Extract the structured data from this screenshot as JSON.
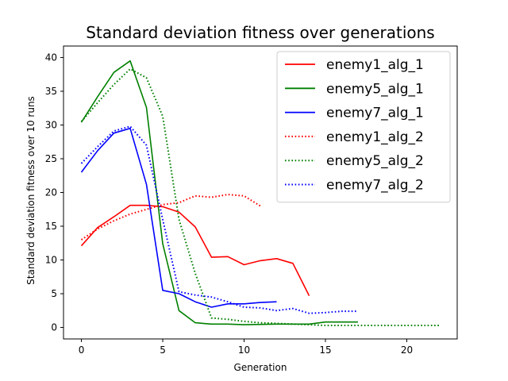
{
  "chart_data": {
    "type": "line",
    "title": "Standard deviation fitness over generations",
    "xlabel": "Generation",
    "ylabel": "Standard deviation fitness over 10 runs",
    "xlim": [
      -1.1,
      23.1
    ],
    "ylim": [
      -1.7,
      41.7
    ],
    "x_ticks": [
      0,
      5,
      10,
      15,
      20
    ],
    "y_ticks": [
      0,
      5,
      10,
      15,
      20,
      25,
      30,
      35,
      40
    ],
    "grid": false,
    "legend_position": "top-right",
    "series": [
      {
        "name": "enemy1_alg_1",
        "color": "#ff0000",
        "style": "solid",
        "x": [
          0,
          1,
          2,
          3,
          4,
          5,
          6,
          7,
          8,
          9,
          10,
          11,
          12,
          13,
          14
        ],
        "y": [
          12.1,
          14.8,
          16.4,
          18.1,
          18.1,
          17.9,
          17.1,
          14.9,
          10.4,
          10.5,
          9.3,
          9.9,
          10.2,
          9.5,
          4.7
        ]
      },
      {
        "name": "enemy5_alg_1",
        "color": "#008000",
        "style": "solid",
        "x": [
          0,
          1,
          2,
          3,
          4,
          5,
          6,
          7,
          8,
          9,
          10,
          11,
          12,
          13,
          14,
          15,
          16,
          17
        ],
        "y": [
          30.4,
          34.2,
          37.8,
          39.5,
          32.6,
          12.4,
          2.5,
          0.7,
          0.5,
          0.5,
          0.4,
          0.45,
          0.5,
          0.5,
          0.5,
          0.8,
          0.8,
          0.8
        ]
      },
      {
        "name": "enemy7_alg_1",
        "color": "#0000ff",
        "style": "solid",
        "x": [
          0,
          1,
          2,
          3,
          4,
          5,
          6,
          7,
          8,
          9,
          10,
          11,
          12
        ],
        "y": [
          23.0,
          26.2,
          28.8,
          29.5,
          21.2,
          5.5,
          5.0,
          3.8,
          3.0,
          3.5,
          3.5,
          3.7,
          3.8
        ]
      },
      {
        "name": "enemy1_alg_2",
        "color": "#ff0000",
        "style": "dotted",
        "x": [
          0,
          1,
          2,
          3,
          4,
          5,
          6,
          7,
          8,
          9,
          10,
          11
        ],
        "y": [
          13.0,
          14.6,
          15.8,
          16.8,
          17.5,
          18.2,
          18.5,
          19.5,
          19.3,
          19.7,
          19.5,
          18.0
        ]
      },
      {
        "name": "enemy5_alg_2",
        "color": "#008000",
        "style": "dotted",
        "x": [
          0,
          1,
          2,
          3,
          4,
          5,
          6,
          7,
          8,
          9,
          10,
          11,
          12,
          13,
          14,
          15,
          16,
          17,
          18,
          19,
          20,
          21,
          22
        ],
        "y": [
          30.5,
          33.3,
          36.0,
          38.3,
          37.0,
          31.3,
          16.0,
          8.0,
          1.4,
          1.2,
          0.9,
          0.7,
          0.6,
          0.5,
          0.4,
          0.3,
          0.3,
          0.3,
          0.3,
          0.3,
          0.3,
          0.3,
          0.3
        ]
      },
      {
        "name": "enemy7_alg_2",
        "color": "#0000ff",
        "style": "dotted",
        "x": [
          0,
          1,
          2,
          3,
          4,
          5,
          6,
          7,
          8,
          9,
          10,
          11,
          12,
          13,
          14,
          15,
          16,
          17
        ],
        "y": [
          24.3,
          26.8,
          29.1,
          29.8,
          27.0,
          16.0,
          5.3,
          4.8,
          4.5,
          3.8,
          3.0,
          2.9,
          2.5,
          2.8,
          2.1,
          2.2,
          2.4,
          2.4
        ]
      }
    ]
  }
}
